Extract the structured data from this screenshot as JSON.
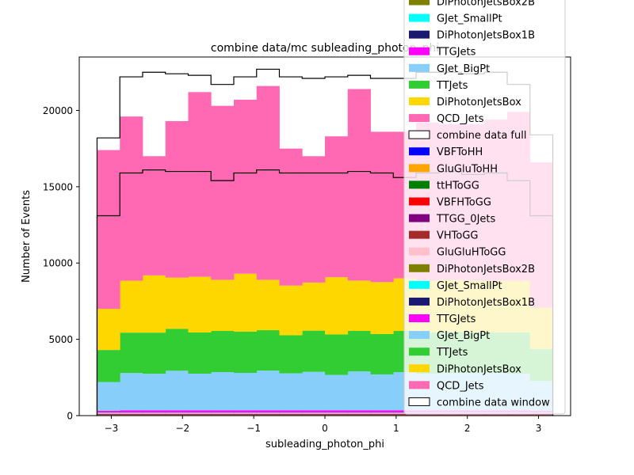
{
  "chart_data": {
    "type": "bar",
    "title": "combine data/mc subleading_photon_phi",
    "xlabel": "subleading_photon_phi",
    "ylabel": "Number of Events",
    "xlim": [
      -3.45,
      3.45
    ],
    "ylim": [
      0,
      23500
    ],
    "xticks": [
      -3,
      -2,
      -1,
      0,
      1,
      2,
      3
    ],
    "xtick_labels": [
      "−3",
      "−2",
      "−1",
      "0",
      "1",
      "2",
      "3"
    ],
    "yticks": [
      0,
      5000,
      10000,
      15000,
      20000
    ],
    "ytick_labels": [
      "0",
      "5000",
      "10000",
      "15000",
      "20000"
    ],
    "bin_edges": [
      -3.2,
      -2.88,
      -2.56,
      -2.24,
      -1.92,
      -1.6,
      -1.28,
      -0.96,
      -0.64,
      -0.32,
      0.0,
      0.32,
      0.64,
      0.96,
      1.28,
      1.6,
      1.92,
      2.24,
      2.56,
      2.88,
      3.2
    ],
    "stack_top_values": [
      17400,
      19600,
      17000,
      19300,
      21200,
      20300,
      20700,
      21600,
      17500,
      17000,
      18300,
      21400,
      18600,
      18600,
      19200,
      19100,
      19100,
      19400,
      19900,
      16600
    ],
    "series": [
      {
        "name": "VBFToHH",
        "color": "#0000ff",
        "values": [
          10,
          10,
          10,
          10,
          10,
          10,
          10,
          10,
          10,
          10,
          10,
          10,
          10,
          10,
          10,
          10,
          10,
          10,
          10,
          10
        ]
      },
      {
        "name": "GluGluToHH",
        "color": "#ffa500",
        "values": [
          10,
          10,
          10,
          10,
          10,
          10,
          10,
          10,
          10,
          10,
          10,
          10,
          10,
          10,
          10,
          10,
          10,
          10,
          10,
          10
        ]
      },
      {
        "name": "ttHToGG",
        "color": "#008000",
        "values": [
          20,
          20,
          20,
          20,
          20,
          20,
          20,
          20,
          20,
          20,
          20,
          20,
          20,
          20,
          20,
          20,
          20,
          20,
          20,
          20
        ]
      },
      {
        "name": "VBFHToGG",
        "color": "#ff0000",
        "values": [
          20,
          20,
          20,
          20,
          20,
          20,
          20,
          20,
          20,
          20,
          20,
          20,
          20,
          20,
          20,
          20,
          20,
          20,
          20,
          20
        ]
      },
      {
        "name": "TTGG_0Jets",
        "color": "#800080",
        "values": [
          40,
          40,
          40,
          40,
          40,
          40,
          40,
          40,
          40,
          40,
          40,
          40,
          40,
          40,
          40,
          40,
          40,
          40,
          40,
          40
        ]
      },
      {
        "name": "VHToGG",
        "color": "#a52a2a",
        "values": [
          20,
          20,
          20,
          20,
          20,
          20,
          20,
          20,
          20,
          20,
          20,
          20,
          20,
          20,
          20,
          20,
          20,
          20,
          20,
          20
        ]
      },
      {
        "name": "GluGluHToGG",
        "color": "#ffc0cb",
        "values": [
          60,
          60,
          60,
          60,
          60,
          60,
          60,
          60,
          60,
          60,
          60,
          60,
          60,
          60,
          60,
          60,
          60,
          60,
          60,
          60
        ]
      },
      {
        "name": "DiPhotonJetsBox2B",
        "color": "#808000",
        "values": [
          10,
          10,
          10,
          10,
          10,
          10,
          10,
          10,
          10,
          10,
          10,
          10,
          10,
          10,
          10,
          10,
          10,
          10,
          10,
          10
        ]
      },
      {
        "name": "GJet_SmallPt",
        "color": "#00ffff",
        "values": [
          10,
          10,
          10,
          10,
          10,
          10,
          10,
          10,
          10,
          10,
          10,
          10,
          10,
          10,
          10,
          10,
          10,
          10,
          10,
          10
        ]
      },
      {
        "name": "DiPhotonJetsBox1B",
        "color": "#191970",
        "values": [
          20,
          20,
          20,
          20,
          20,
          20,
          20,
          20,
          20,
          20,
          20,
          20,
          20,
          20,
          20,
          20,
          20,
          20,
          20,
          20
        ]
      },
      {
        "name": "TTGJets",
        "color": "#ff00ff",
        "values": [
          100,
          130,
          130,
          130,
          130,
          130,
          130,
          130,
          130,
          130,
          130,
          130,
          130,
          130,
          130,
          130,
          130,
          130,
          130,
          100
        ]
      },
      {
        "name": "GJet_BigPt",
        "color": "#87cefa",
        "values": [
          1880,
          2440,
          2390,
          2590,
          2400,
          2500,
          2450,
          2600,
          2420,
          2520,
          2320,
          2550,
          2350,
          2500,
          2400,
          2450,
          2450,
          2450,
          2400,
          1950
        ]
      },
      {
        "name": "TTJets",
        "color": "#32cd32",
        "values": [
          2100,
          2650,
          2700,
          2750,
          2700,
          2700,
          2700,
          2650,
          2500,
          2700,
          2650,
          2650,
          2650,
          2700,
          2700,
          2700,
          2650,
          2650,
          2700,
          2100
        ]
      },
      {
        "name": "DiPhotonJetsBox",
        "color": "#ffd700",
        "values": [
          2700,
          3400,
          3750,
          3350,
          3650,
          3350,
          3800,
          3300,
          3250,
          3150,
          3750,
          3300,
          3400,
          3450,
          3400,
          3400,
          3400,
          3400,
          3400,
          2700
        ]
      },
      {
        "name": "QCD_Jets",
        "color": "#ff69b4",
        "values": [
          10400,
          10800,
          8000,
          10300,
          12400,
          11500,
          11900,
          12650,
          8850,
          8250,
          9950,
          12450,
          9880,
          9630,
          10230,
          10130,
          10180,
          10430,
          10930,
          9530
        ]
      }
    ],
    "data_series": [
      {
        "name": "combine data full",
        "values": [
          18200,
          22200,
          22500,
          22400,
          22300,
          21700,
          22200,
          22700,
          22200,
          22100,
          22200,
          22300,
          22100,
          22100,
          22500,
          22500,
          22400,
          22500,
          21700,
          18400
        ]
      },
      {
        "name": "combine data window",
        "values": [
          13100,
          15900,
          16100,
          16000,
          16000,
          15400,
          15900,
          16100,
          15900,
          15900,
          15900,
          16000,
          15900,
          15600,
          15900,
          16000,
          15800,
          15900,
          15400,
          13100
        ]
      }
    ],
    "legend": {
      "placement": "right",
      "entries": [
        {
          "label": "DiPhotonJetsBox2B",
          "color": "#808000",
          "kind": "patch"
        },
        {
          "label": "GJet_SmallPt",
          "color": "#00ffff",
          "kind": "patch"
        },
        {
          "label": "DiPhotonJetsBox1B",
          "color": "#191970",
          "kind": "patch"
        },
        {
          "label": "TTGJets",
          "color": "#ff00ff",
          "kind": "patch"
        },
        {
          "label": "GJet_BigPt",
          "color": "#87cefa",
          "kind": "patch"
        },
        {
          "label": "TTJets",
          "color": "#32cd32",
          "kind": "patch"
        },
        {
          "label": "DiPhotonJetsBox",
          "color": "#ffd700",
          "kind": "patch"
        },
        {
          "label": "QCD_Jets",
          "color": "#ff69b4",
          "kind": "patch"
        },
        {
          "label": "combine data full",
          "color": "#000000",
          "kind": "outline"
        },
        {
          "label": "VBFToHH",
          "color": "#0000ff",
          "kind": "patch"
        },
        {
          "label": "GluGluToHH",
          "color": "#ffa500",
          "kind": "patch"
        },
        {
          "label": "ttHToGG",
          "color": "#008000",
          "kind": "patch"
        },
        {
          "label": "VBFHToGG",
          "color": "#ff0000",
          "kind": "patch"
        },
        {
          "label": "TTGG_0Jets",
          "color": "#800080",
          "kind": "patch"
        },
        {
          "label": "VHToGG",
          "color": "#a52a2a",
          "kind": "patch"
        },
        {
          "label": "GluGluHToGG",
          "color": "#ffc0cb",
          "kind": "patch"
        },
        {
          "label": "DiPhotonJetsBox2B",
          "color": "#808000",
          "kind": "patch"
        },
        {
          "label": "GJet_SmallPt",
          "color": "#00ffff",
          "kind": "patch"
        },
        {
          "label": "DiPhotonJetsBox1B",
          "color": "#191970",
          "kind": "patch"
        },
        {
          "label": "TTGJets",
          "color": "#ff00ff",
          "kind": "patch"
        },
        {
          "label": "GJet_BigPt",
          "color": "#87cefa",
          "kind": "patch"
        },
        {
          "label": "TTJets",
          "color": "#32cd32",
          "kind": "patch"
        },
        {
          "label": "DiPhotonJetsBox",
          "color": "#ffd700",
          "kind": "patch"
        },
        {
          "label": "QCD_Jets",
          "color": "#ff69b4",
          "kind": "patch"
        },
        {
          "label": "combine data window",
          "color": "#000000",
          "kind": "outline"
        }
      ]
    },
    "grid": false
  }
}
